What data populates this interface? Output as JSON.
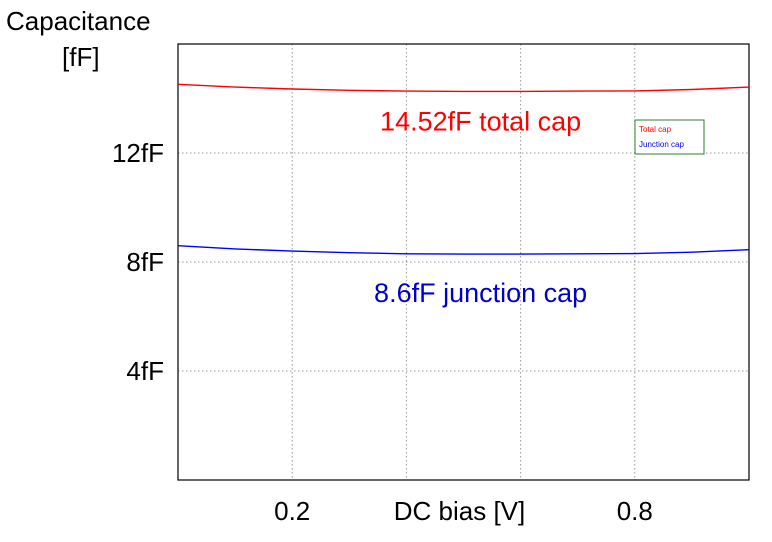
{
  "chart_data": {
    "type": "line",
    "title": "",
    "ylabel_line1": "Capacitance",
    "ylabel_line2": "[fF]",
    "xlabel": "DC bias [V]",
    "xlim": [
      0,
      1
    ],
    "ylim": [
      0,
      16
    ],
    "grid": true,
    "legend_position": "top-right",
    "xticks": [
      {
        "value": 0.2,
        "label": "0.2"
      },
      {
        "value": 0.8,
        "label": "0.8"
      }
    ],
    "xgrid": [
      0,
      0.2,
      0.4,
      0.6,
      0.8,
      1.0
    ],
    "yticks": [
      {
        "value": 4,
        "label": "4fF"
      },
      {
        "value": 8,
        "label": "8fF"
      },
      {
        "value": 12,
        "label": "12fF"
      }
    ],
    "series": [
      {
        "name": "Total cap",
        "color": "#ff0000",
        "x": [
          0,
          0.1,
          0.2,
          0.3,
          0.4,
          0.5,
          0.6,
          0.7,
          0.8,
          0.9,
          1.0
        ],
        "y": [
          14.52,
          14.42,
          14.35,
          14.3,
          14.27,
          14.26,
          14.26,
          14.27,
          14.28,
          14.33,
          14.42
        ]
      },
      {
        "name": "Junction cap",
        "color": "#0000ff",
        "x": [
          0,
          0.1,
          0.2,
          0.3,
          0.4,
          0.5,
          0.6,
          0.7,
          0.8,
          0.9,
          1.0
        ],
        "y": [
          8.6,
          8.48,
          8.4,
          8.34,
          8.3,
          8.29,
          8.29,
          8.3,
          8.31,
          8.36,
          8.45
        ]
      }
    ],
    "annotations": [
      {
        "text": "14.52fF total cap",
        "x": 0.53,
        "y": 13.2,
        "color": "#ff0000"
      },
      {
        "text": "8.6fF junction cap",
        "x": 0.53,
        "y": 6.9,
        "color": "#0000cc"
      }
    ]
  }
}
